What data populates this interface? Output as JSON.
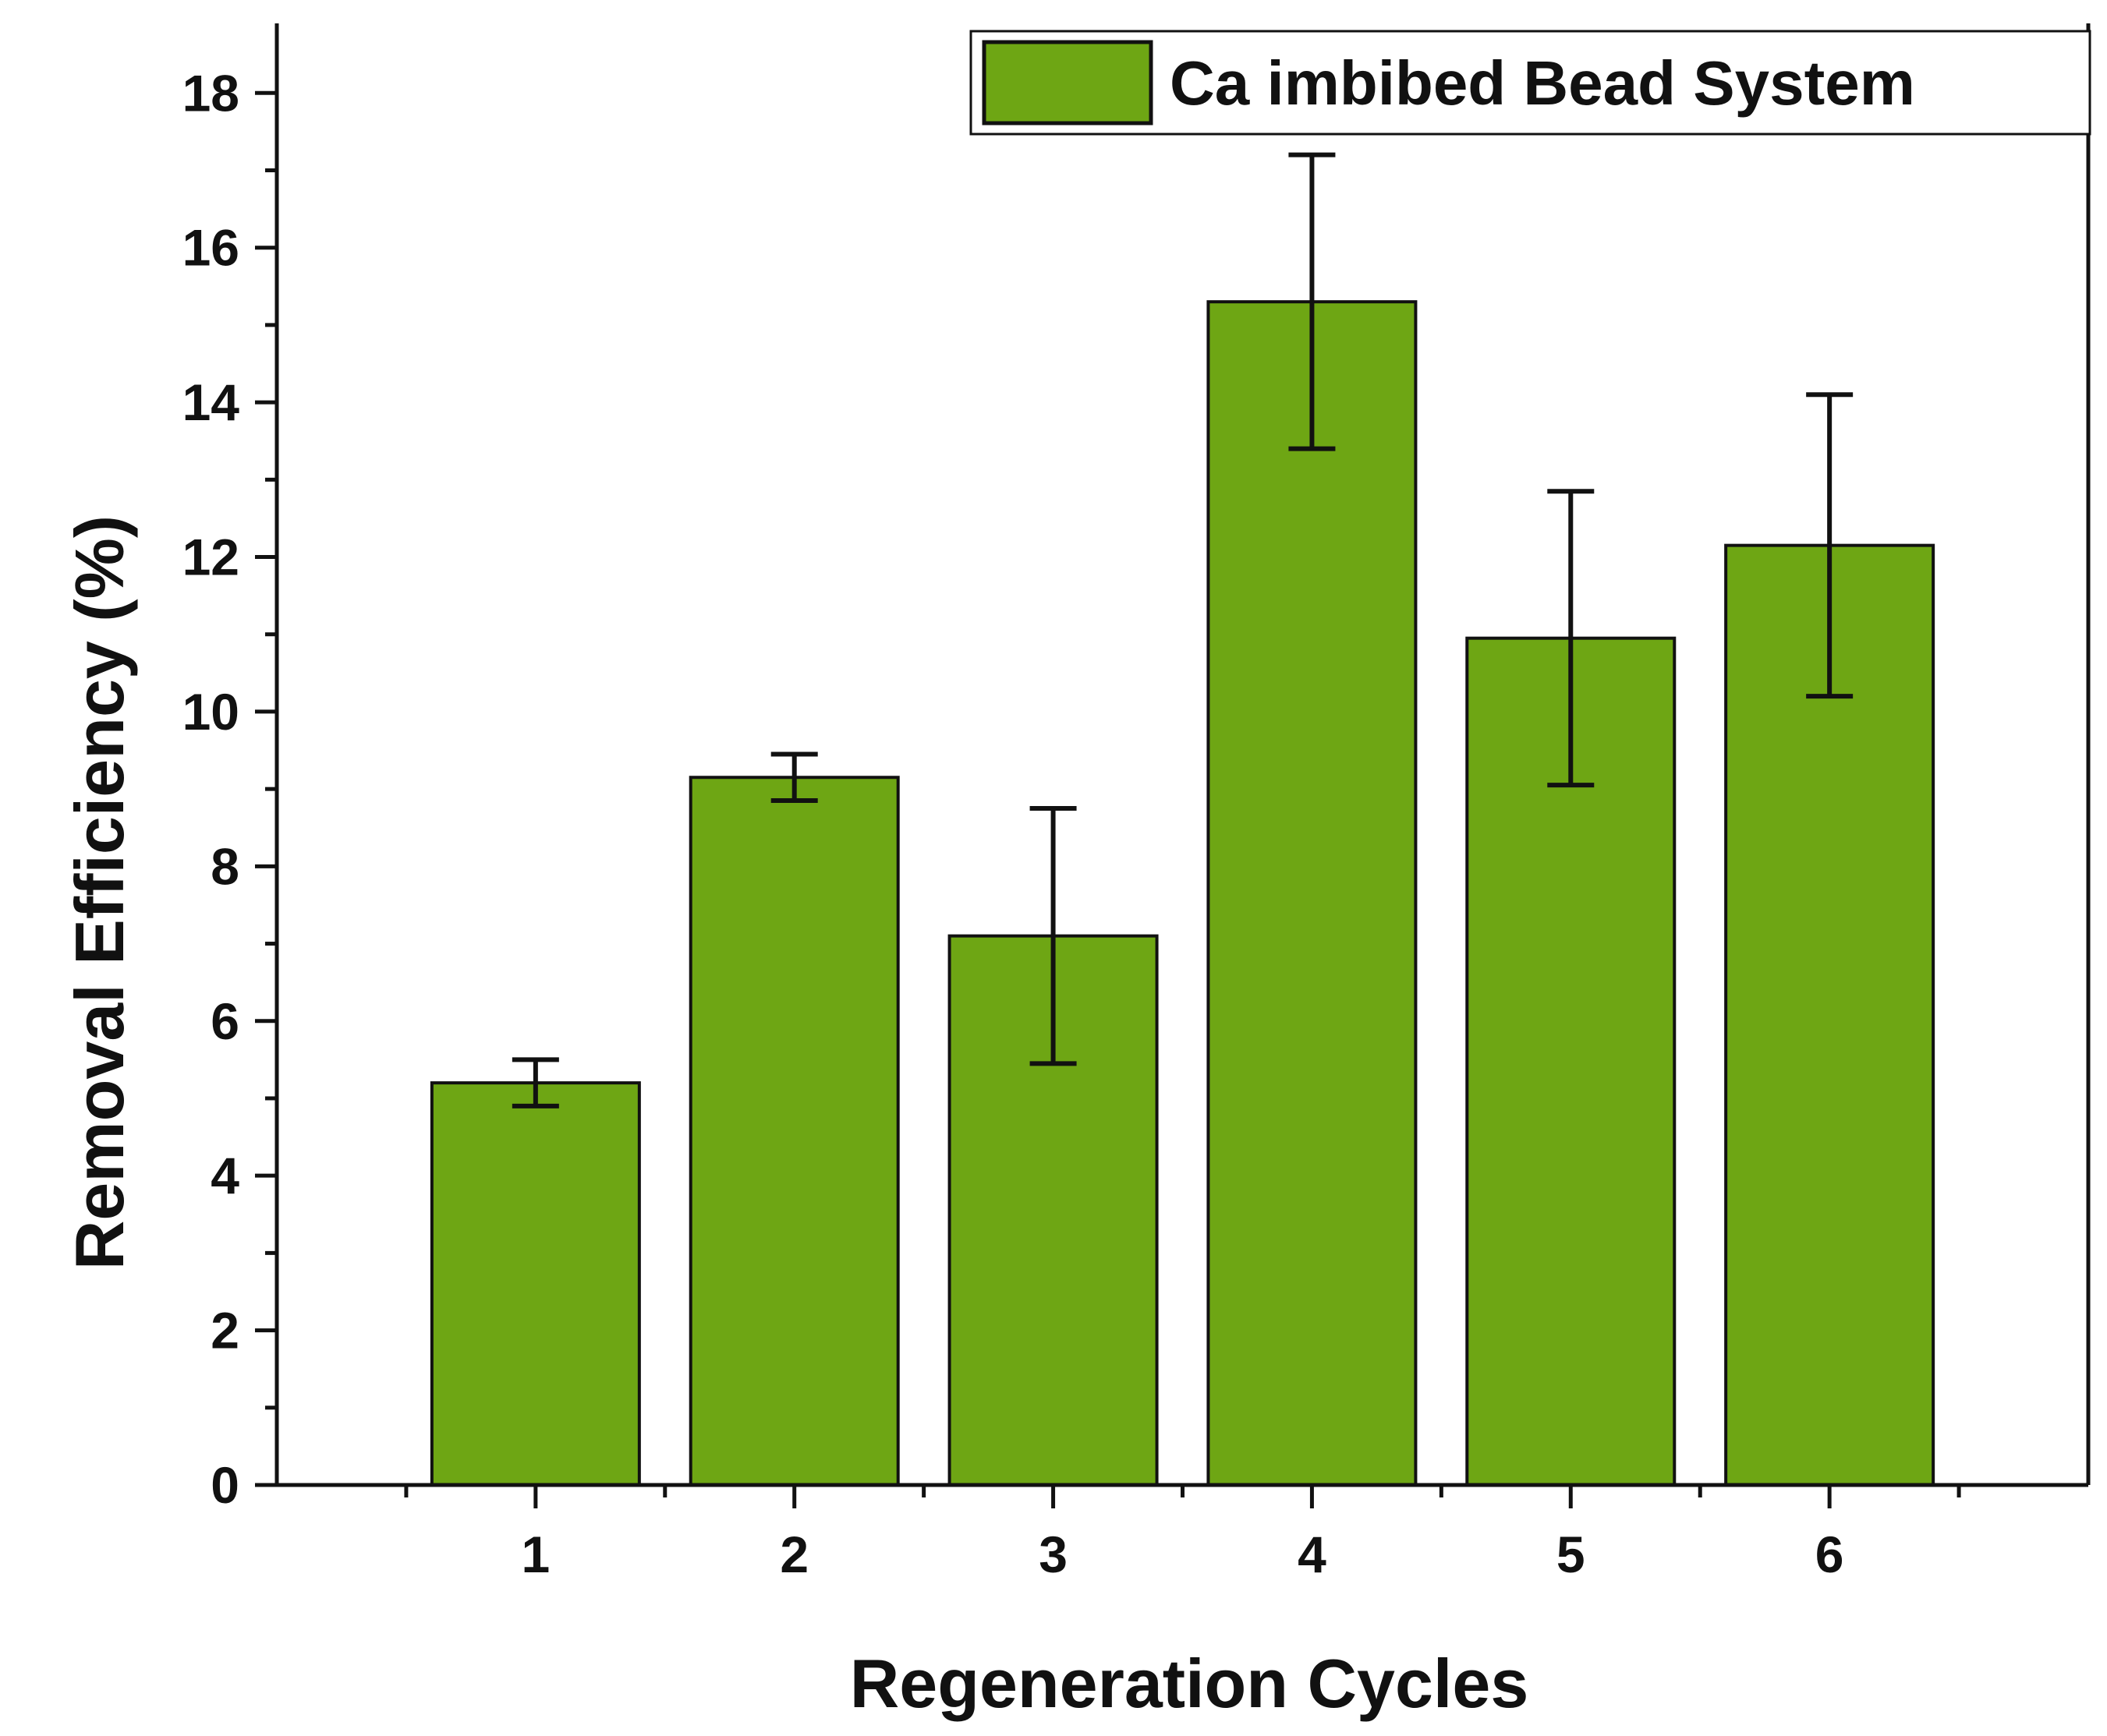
{
  "chart_data": {
    "type": "bar",
    "title": "",
    "xlabel": "Regeneration Cycles",
    "ylabel": "Removal Efficiency (%)",
    "categories": [
      "1",
      "2",
      "3",
      "4",
      "5",
      "6"
    ],
    "series": [
      {
        "name": "Ca imbibed Bead System",
        "values": [
          5.2,
          9.15,
          7.1,
          15.3,
          10.95,
          12.15
        ],
        "errors": [
          0.3,
          0.3,
          1.65,
          1.9,
          1.9,
          1.95
        ]
      }
    ],
    "x_range": [
      0,
      7
    ],
    "ylim": [
      0,
      18.9
    ],
    "y_ticks": [
      0,
      2,
      4,
      6,
      8,
      10,
      12,
      14,
      16,
      18
    ],
    "y_minor_step": 1,
    "x_minor_ticks": [
      0.5,
      1.5,
      2.5,
      3.5,
      4.5,
      5.5,
      6.5
    ],
    "grid": false,
    "legend_position": "top-right",
    "colors": {
      "bar_fill": "#6ea614",
      "bar_stroke": "#111111",
      "axis": "#111111",
      "error_bar": "#111111"
    }
  }
}
